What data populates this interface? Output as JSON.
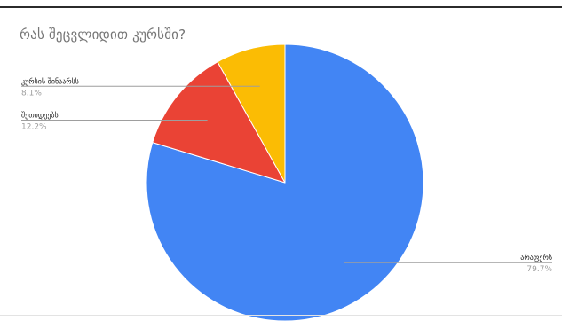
{
  "chart_data": {
    "type": "pie",
    "title": "რას შეცვლიდით კურსში?",
    "slices": [
      {
        "label": "არაფერს",
        "value": 79.7,
        "display": "79.7%",
        "color": "#4285f4"
      },
      {
        "label": "შეთიდეებს",
        "value": 12.2,
        "display": "12.2%",
        "color": "#ea4335"
      },
      {
        "label": "კურსის შინაარსს",
        "value": 8.1,
        "display": "8.1%",
        "color": "#fbbc04"
      }
    ],
    "start_angle_deg": 0,
    "direction": "clockwise",
    "legend": "none",
    "label_placement": "outside-leader-lines"
  }
}
